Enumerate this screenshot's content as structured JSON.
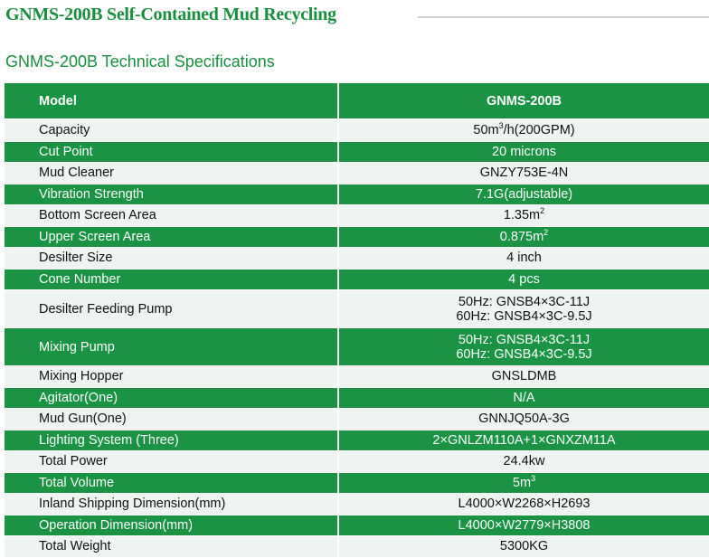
{
  "title": "GNMS-200B Self-Contained Mud Recycling",
  "subtitle": "GNMS-200B Technical Specifications",
  "header": {
    "key": "Model",
    "value": "GNMS-200B"
  },
  "rows": [
    {
      "key": "Capacity",
      "value": "50m",
      "sup": "3",
      "rest": "/h(200GPM)"
    },
    {
      "key": "Cut Point",
      "value": "20 microns"
    },
    {
      "key": "Mud Cleaner",
      "value": "GNZY753E-4N"
    },
    {
      "key": "Vibration Strength",
      "value": "7.1G(adjustable)"
    },
    {
      "key": "Bottom Screen Area",
      "value": "1.35m",
      "sup": "2"
    },
    {
      "key": "Upper Screen Area",
      "value": "0.875m",
      "sup": "2"
    },
    {
      "key": "Desilter Size",
      "value": "4 inch"
    },
    {
      "key": "Cone Number",
      "value": "4 pcs"
    },
    {
      "key": "Desilter Feeding Pump",
      "value": "50Hz: GNSB4×3C-11J",
      "value2": "60Hz: GNSB4×3C-9.5J"
    },
    {
      "key": "Mixing Pump",
      "value": "50Hz: GNSB4×3C-11J",
      "value2": "60Hz: GNSB4×3C-9.5J"
    },
    {
      "key": "Mixing Hopper",
      "value": "GNSLDMB"
    },
    {
      "key": "Agitator(One)",
      "value": "N/A"
    },
    {
      "key": "Mud Gun(One)",
      "value": "GNNJQ50A-3G"
    },
    {
      "key": "Lighting System (Three)",
      "value": "2×GNLZM110A+1×GNXZM11A"
    },
    {
      "key": "Total Power",
      "value": "24.4kw"
    },
    {
      "key": "Total Volume",
      "value": "5m",
      "sup": "3"
    },
    {
      "key": "Inland Shipping Dimension(mm)",
      "value": "L4000×W2268×H2693"
    },
    {
      "key": "Operation Dimension(mm)",
      "value": "L4000×W2779×H3808"
    },
    {
      "key": "Total Weight",
      "value": "5300KG"
    }
  ],
  "colors": {
    "green": "#1a9443",
    "light": "#eef4ef"
  }
}
